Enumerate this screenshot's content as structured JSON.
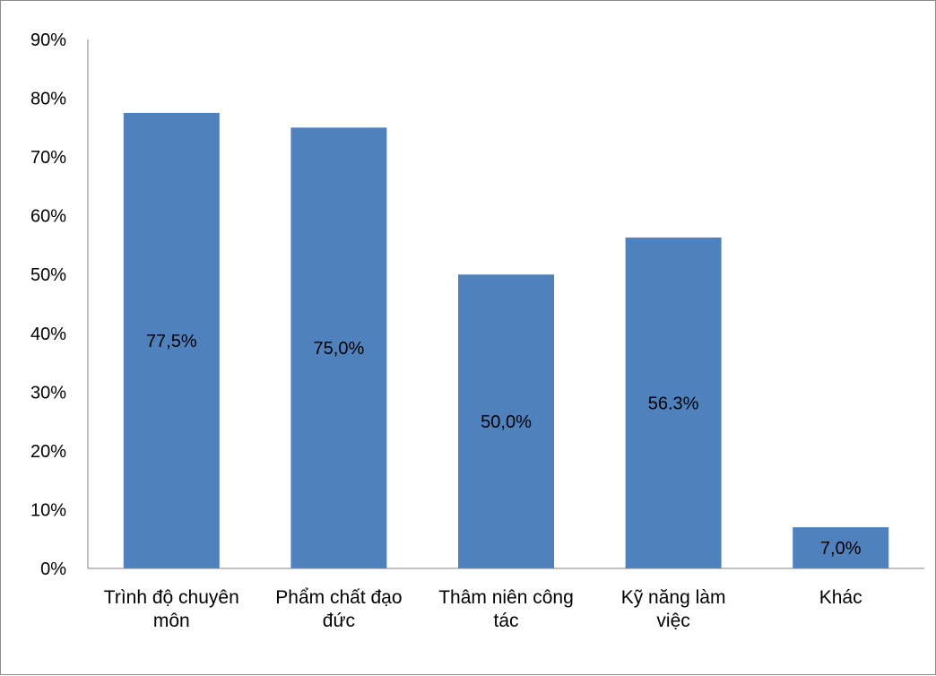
{
  "chart_data": {
    "type": "bar",
    "categories": [
      [
        "Trình độ chuyên",
        "môn"
      ],
      [
        "Phẩm chất đạo",
        "đức"
      ],
      [
        "Thâm niên công",
        "tác"
      ],
      [
        "Kỹ năng làm",
        "việc"
      ],
      [
        "Khác"
      ]
    ],
    "values": [
      77.5,
      75.0,
      50.0,
      56.3,
      7.0
    ],
    "data_labels": [
      "77,5%",
      "75,0%",
      "50,0%",
      "56.3%",
      "7,0%"
    ],
    "ylim": [
      0,
      90
    ],
    "yticks": [
      0,
      10,
      20,
      30,
      40,
      50,
      60,
      70,
      80,
      90
    ],
    "ytick_labels": [
      "0%",
      "10%",
      "20%",
      "30%",
      "40%",
      "50%",
      "60%",
      "70%",
      "80%",
      "90%"
    ],
    "title": "",
    "xlabel": "",
    "ylabel": "",
    "grid": false,
    "legend": "none",
    "bar_color": "#4f81bd",
    "axis_color": "#868686"
  }
}
